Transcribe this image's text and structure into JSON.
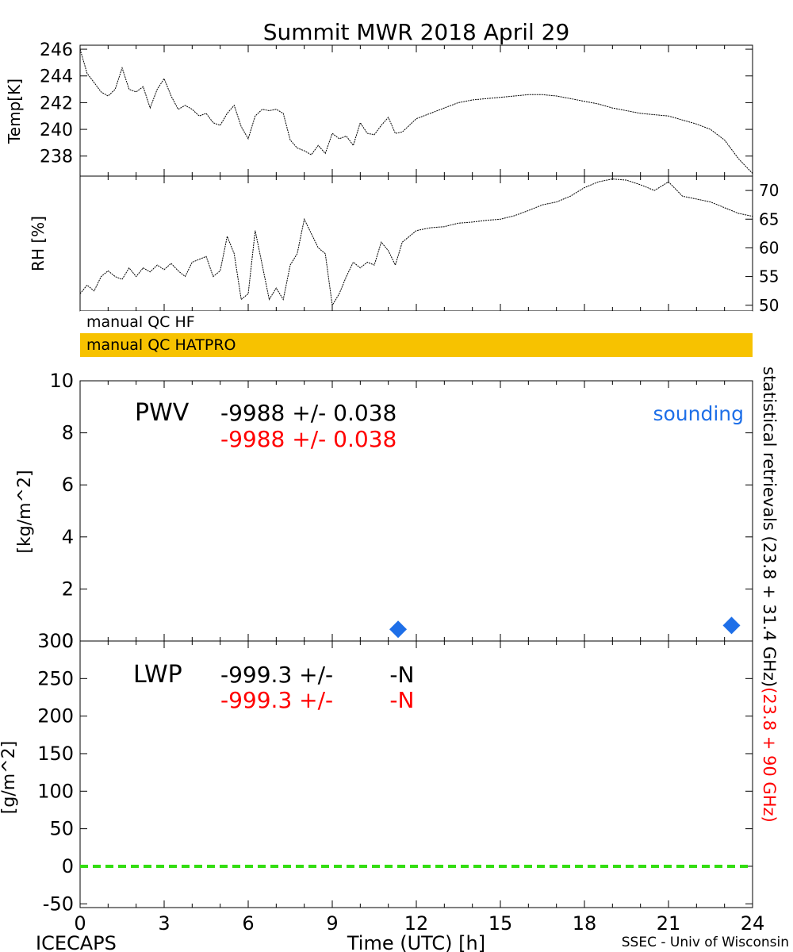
{
  "title": "Summit MWR 2018 April 29",
  "footer": {
    "left": "ICECAPS",
    "center": "Time (UTC) [h]",
    "right": "SSEC - Univ of Wisconsin"
  },
  "qc": {
    "hf_label": "manual QC HF",
    "hatpro_label": "manual QC HATPRO",
    "hatpro_color": "#f7c200"
  },
  "colors": {
    "red": "#ff0000",
    "blue": "#1e6fe8",
    "green": "#33dd11",
    "black": "#000000"
  },
  "right_label": {
    "black": "statistical retrievals (23.8 + 31.4 GHz)",
    "red": "(23.8 + 90 GHz)"
  },
  "pwv": {
    "label": "PWV",
    "line1": "-9988 +/- 0.038",
    "line2": "-9988 +/- 0.038",
    "sounding_label": "sounding"
  },
  "lwp": {
    "label": "LWP",
    "line1": "-999.3 +/-        -N",
    "line2": "-999.3 +/-        -N"
  },
  "chart_data": [
    {
      "type": "line",
      "ylabel": "Temp[K]",
      "xlim": [
        0,
        24
      ],
      "ylim": [
        236.5,
        246.3
      ],
      "yticks": [
        238,
        240,
        242,
        244,
        246
      ],
      "x": [
        0,
        0.25,
        0.5,
        0.75,
        1,
        1.25,
        1.5,
        1.75,
        2,
        2.25,
        2.5,
        2.75,
        3,
        3.25,
        3.5,
        3.75,
        4,
        4.25,
        4.5,
        4.75,
        5,
        5.25,
        5.5,
        5.75,
        6,
        6.25,
        6.5,
        6.75,
        7,
        7.25,
        7.5,
        7.75,
        8,
        8.25,
        8.5,
        8.75,
        9,
        9.25,
        9.5,
        9.75,
        10,
        10.25,
        10.5,
        10.75,
        11,
        11.25,
        11.5,
        11.75,
        12,
        12.5,
        13,
        13.5,
        14,
        14.5,
        15,
        15.5,
        16,
        16.5,
        17,
        17.5,
        18,
        18.5,
        19,
        19.5,
        20,
        20.5,
        21,
        21.5,
        22,
        22.5,
        23,
        23.5,
        24
      ],
      "series": [
        {
          "values": [
            246,
            244.2,
            243.5,
            242.8,
            242.5,
            243,
            244.6,
            243,
            242.8,
            243.2,
            241.6,
            243,
            243.8,
            242.5,
            241.5,
            241.8,
            241.5,
            241,
            241.2,
            240.5,
            240.3,
            241.2,
            241.8,
            240.2,
            239.3,
            241,
            241.5,
            241.4,
            241.5,
            241.2,
            239.2,
            238.6,
            238.4,
            238.1,
            238.8,
            238.2,
            239.7,
            239.3,
            239.5,
            238.8,
            240.5,
            239.7,
            239.6,
            240.3,
            240.9,
            239.7,
            239.8,
            240.3,
            240.8,
            241.2,
            241.6,
            242,
            242.2,
            242.3,
            242.4,
            242.5,
            242.6,
            242.6,
            242.5,
            242.3,
            242.1,
            241.9,
            241.6,
            241.4,
            241.2,
            241.1,
            241,
            240.7,
            240.4,
            240,
            239.2,
            237.8,
            236.7
          ]
        }
      ]
    },
    {
      "type": "line",
      "ylabel": "RH [%]",
      "xlim": [
        0,
        24
      ],
      "ylim": [
        49,
        72.5
      ],
      "yticks": [
        50,
        55,
        60,
        65,
        70
      ],
      "x": [
        0,
        0.25,
        0.5,
        0.75,
        1,
        1.25,
        1.5,
        1.75,
        2,
        2.25,
        2.5,
        2.75,
        3,
        3.25,
        3.5,
        3.75,
        4,
        4.25,
        4.5,
        4.75,
        5,
        5.25,
        5.5,
        5.75,
        6,
        6.25,
        6.5,
        6.75,
        7,
        7.25,
        7.5,
        7.75,
        8,
        8.25,
        8.5,
        8.75,
        9,
        9.25,
        9.5,
        9.75,
        10,
        10.25,
        10.5,
        10.75,
        11,
        11.25,
        11.5,
        11.75,
        12,
        12.5,
        13,
        13.5,
        14,
        14.5,
        15,
        15.5,
        16,
        16.5,
        17,
        17.5,
        18,
        18.5,
        19,
        19.5,
        20,
        20.5,
        21,
        21.5,
        22,
        22.5,
        23,
        23.5,
        24
      ],
      "series": [
        {
          "values": [
            52,
            53.5,
            52.5,
            55,
            56,
            55,
            54.5,
            56.5,
            55,
            56.5,
            55.8,
            57,
            56.2,
            57.3,
            56,
            55,
            57.5,
            58,
            58.5,
            55,
            56,
            62,
            59,
            51,
            52,
            63,
            57,
            51,
            53,
            51,
            57,
            59,
            65,
            62.5,
            60,
            59,
            50,
            52,
            55,
            57.5,
            56.5,
            57.5,
            57,
            61,
            59.5,
            57,
            61,
            62,
            63,
            63.5,
            63.7,
            64.3,
            64.5,
            64.8,
            65,
            65.6,
            66.5,
            67.5,
            68,
            69,
            70.5,
            71.5,
            72,
            71.8,
            71,
            70,
            71.5,
            69,
            68.5,
            68,
            67,
            66,
            65.5
          ]
        }
      ]
    },
    {
      "type": "scatter",
      "ylabel": "[kg/m^2]",
      "xlim": [
        0,
        24
      ],
      "ylim": [
        0,
        10
      ],
      "yticks": [
        0,
        2,
        4,
        6,
        8,
        10
      ],
      "series": [
        {
          "name": "sounding",
          "x": [
            11.35,
            23.25
          ],
          "y": [
            0.45,
            0.6
          ]
        }
      ]
    },
    {
      "type": "line",
      "ylabel": "[g/m^2]",
      "xlabel": "Time (UTC) [h]",
      "xlim": [
        0,
        24
      ],
      "ylim": [
        -55,
        300
      ],
      "yticks": [
        -50,
        0,
        50,
        100,
        150,
        200,
        250,
        300
      ],
      "xticks": [
        0,
        3,
        6,
        9,
        12,
        15,
        18,
        21,
        24
      ],
      "series": [
        {
          "x": [
            0,
            24
          ],
          "values": [
            0,
            0
          ]
        }
      ]
    }
  ]
}
